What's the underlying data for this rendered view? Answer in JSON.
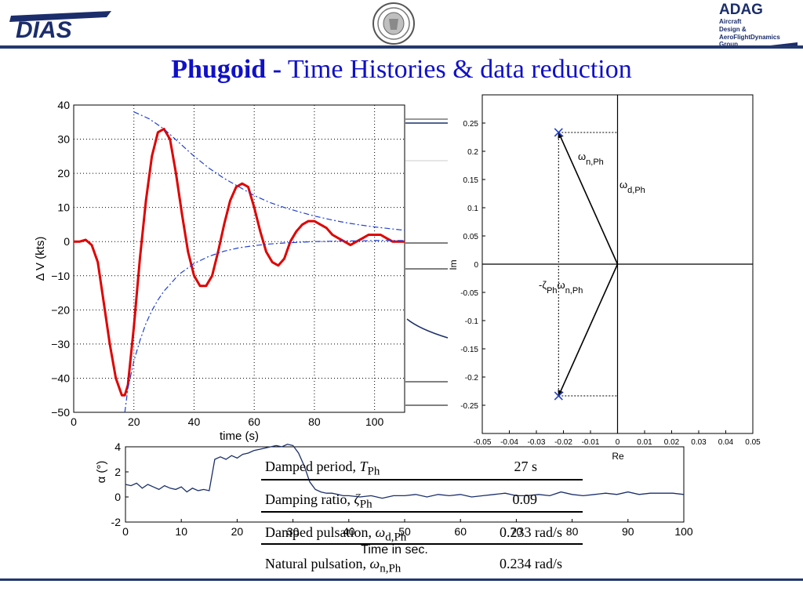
{
  "header": {
    "logo_left": "DIAS",
    "logo_right_title": "ADAG",
    "logo_right_lines": [
      "Aircraft",
      "Design &",
      "AeroFlightDynamics",
      "Group"
    ]
  },
  "title": {
    "bold": "Phugoid  -",
    "rest": " Time Histories & data reduction"
  },
  "colors": {
    "title": "#1010c8",
    "response": "#e00000",
    "envelope": "#1f3fd4",
    "alpha_trace": "#1a2f6b",
    "header_rule": "#22386e"
  },
  "chart_data": [
    {
      "type": "line",
      "xlabel": "time (s)",
      "ylabel": "Δ V (kts)",
      "xlim": [
        0,
        110
      ],
      "ylim": [
        -50,
        40
      ],
      "xticks": [
        "0",
        "20",
        "40",
        "60",
        "80",
        "100"
      ],
      "yticks": [
        "40",
        "30",
        "20",
        "10",
        "0",
        "−10",
        "−20",
        "−30",
        "−40",
        "−50"
      ],
      "grid": true,
      "series": [
        {
          "x": [
            0,
            2,
            4,
            6,
            8,
            10,
            12,
            14,
            16,
            17,
            18,
            20,
            22,
            24,
            26,
            28,
            30,
            32,
            34,
            36,
            38,
            40,
            42,
            44,
            46,
            48,
            50,
            52,
            54,
            56,
            58,
            60,
            62,
            64,
            66,
            68,
            70,
            72,
            74,
            76,
            78,
            80,
            82,
            84,
            86,
            88,
            90,
            92,
            94,
            96,
            98,
            100,
            102,
            104,
            106,
            108,
            110
          ],
          "y": [
            0,
            0,
            0.5,
            -1,
            -6,
            -18,
            -30,
            -40,
            -45,
            -45,
            -42,
            -25,
            -5,
            12,
            25,
            32,
            33,
            30,
            20,
            8,
            -3,
            -10,
            -13,
            -13,
            -10,
            -3,
            5,
            12,
            16,
            17,
            16,
            10,
            3,
            -3,
            -6,
            -7,
            -5,
            0,
            3,
            5,
            6,
            6,
            5,
            4,
            2,
            1,
            0,
            -1,
            0,
            1,
            2,
            2,
            2,
            1,
            0,
            0,
            0
          ]
        },
        {
          "x": [
            17,
            18,
            20,
            22,
            24,
            26,
            28,
            30,
            35,
            40,
            45,
            50,
            55,
            60,
            65,
            70,
            75,
            80,
            85,
            90,
            95,
            100,
            105,
            110
          ],
          "y": [
            -50,
            -43,
            -35,
            -29,
            -24,
            -20.2,
            -17.1,
            -14.5,
            -9.6,
            -6.4,
            -4.3,
            -2.8,
            -1.8,
            -1.2,
            -0.7,
            -0.4,
            -0.2,
            0,
            0.1,
            0.2,
            0.2,
            0.3,
            0.3,
            0.3
          ]
        },
        {
          "x": [
            20,
            25,
            30,
            35,
            40,
            45,
            50,
            55,
            60,
            65,
            70,
            75,
            80,
            85,
            90,
            95,
            100,
            105,
            110
          ],
          "y": [
            38,
            36,
            33,
            29,
            25,
            21.5,
            18.5,
            16,
            13.5,
            11.5,
            10,
            8.7,
            7.5,
            6.5,
            5.6,
            4.9,
            4.3,
            3.8,
            3.3
          ]
        }
      ]
    },
    {
      "type": "line",
      "xlabel": "Time in sec.",
      "ylabel": "α (°)",
      "xlim": [
        0,
        100
      ],
      "ylim": [
        -2,
        4
      ],
      "xticks": [
        "0",
        "10",
        "20",
        "30",
        "40",
        "50",
        "60",
        "70",
        "80",
        "90",
        "100"
      ],
      "yticks": [
        "4",
        "2",
        "0",
        "-2"
      ],
      "series": [
        {
          "x": [
            0,
            1,
            2,
            3,
            4,
            5,
            6,
            7,
            8,
            9,
            10,
            11,
            12,
            13,
            14,
            15,
            16,
            17,
            18,
            19,
            20,
            21,
            22,
            23,
            24,
            25,
            26,
            27,
            28,
            29,
            30,
            31,
            32,
            33,
            34,
            35,
            36,
            37,
            38,
            39,
            40,
            42,
            44,
            46,
            48,
            50,
            52,
            54,
            56,
            58,
            60,
            62,
            64,
            66,
            68,
            70,
            72,
            74,
            76,
            78,
            80,
            82,
            84,
            86,
            88,
            90,
            92,
            94,
            96,
            98,
            100
          ],
          "y": [
            1,
            0.9,
            1.1,
            0.7,
            1.0,
            0.8,
            0.6,
            0.9,
            0.7,
            0.6,
            0.8,
            0.4,
            0.7,
            0.5,
            0.6,
            0.5,
            3.0,
            3.2,
            3.0,
            3.3,
            3.1,
            3.4,
            3.5,
            3.7,
            3.8,
            3.9,
            4.0,
            4.1,
            4.0,
            4.2,
            4.1,
            3.5,
            2.5,
            1.2,
            0.6,
            0.4,
            0.3,
            0.3,
            0.2,
            0.1,
            0.1,
            0.0,
            0.1,
            -0.1,
            0.1,
            0.1,
            0.2,
            0.0,
            0.2,
            0.1,
            0.2,
            0.0,
            0.1,
            0.2,
            0.3,
            0.1,
            0.1,
            0.2,
            0.1,
            0.4,
            0.2,
            0.1,
            0.2,
            0.3,
            0.2,
            0.4,
            0.2,
            0.3,
            0.3,
            0.3,
            0.2
          ]
        }
      ]
    },
    {
      "type": "scatter",
      "xlabel": "Re",
      "ylabel": "Im",
      "xlim": [
        -0.05,
        0.05
      ],
      "ylim": [
        -0.3,
        0.3
      ],
      "xticks": [
        "-0.05",
        "-0.04",
        "-0.03",
        "-0.02",
        "-0.01",
        "0",
        "0.01",
        "0.02",
        "0.03",
        "0.04",
        "0.05"
      ],
      "yticks": [
        "0.25",
        "0.2",
        "0.15",
        "0.1",
        "0.05",
        "0",
        "-0.05",
        "-0.1",
        "-0.15",
        "-0.2",
        "-0.25"
      ],
      "points": [
        {
          "x": -0.0218,
          "y": 0.2334
        },
        {
          "x": -0.0218,
          "y": -0.2334
        }
      ],
      "annotations": {
        "wn": "ω",
        "wn_sub": "n,Ph",
        "wd": "ω",
        "wd_sub": "d,Ph",
        "zeta_wn_prefix": "-ζ",
        "zeta_sub": "Ph",
        "zeta_w": "ω",
        "zeta_w_sub": "n,Ph"
      }
    }
  ],
  "results": [
    {
      "label": "Damped period, ",
      "sym": "T",
      "sub": "Ph",
      "value": "27 s"
    },
    {
      "label": "Damping ratio, ",
      "sym": "ζ",
      "sub": "Ph",
      "value": "0.09"
    },
    {
      "label": "Damped pulsation, ",
      "sym": "ω",
      "sub": "d,Ph",
      "value": "0.233 rad/s"
    },
    {
      "label": "Natural pulsation, ",
      "sym": "ω",
      "sub": "n,Ph",
      "value": "0.234 rad/s"
    }
  ]
}
